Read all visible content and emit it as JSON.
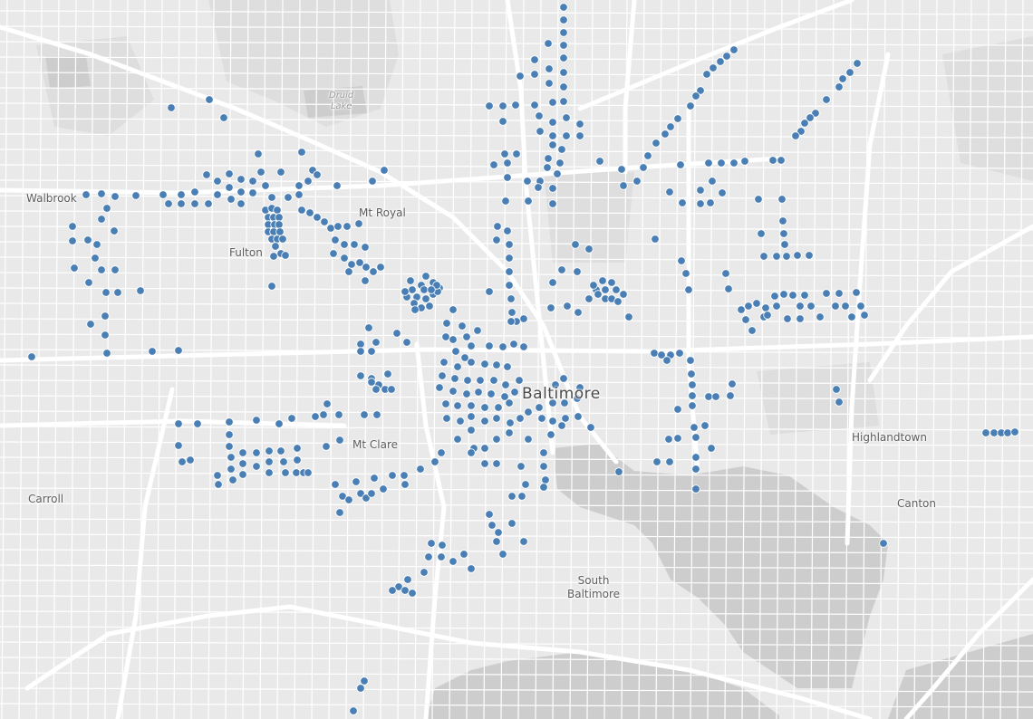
{
  "map": {
    "marker_color": "#4a7fb5",
    "background_color": "#e9e9e9",
    "road_color": "#ffffff",
    "water_color": "#cdcdcd",
    "park_color": "#dedede"
  },
  "labels": {
    "baltimore": "Baltimore",
    "walbrook": "Walbrook",
    "mt_royal": "Mt Royal",
    "fulton": "Fulton",
    "druid": "Druid",
    "lake": "Lake",
    "mt_clare": "Mt Clare",
    "carroll": "Carroll",
    "highlandtown": "Highlandtown",
    "canton": "Canton",
    "south": "South",
    "baltimore_sub": "Baltimore"
  }
}
